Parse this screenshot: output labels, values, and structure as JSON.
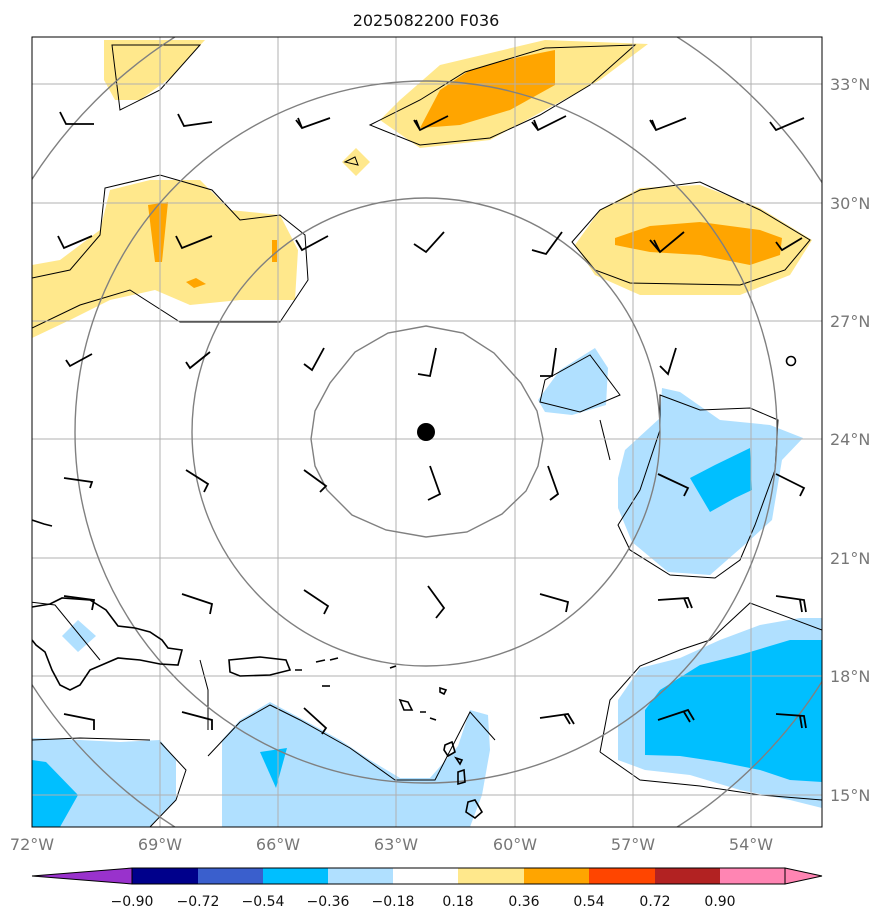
{
  "title": "2025082200 F036",
  "map": {
    "lon_range": [
      -72.3,
      -52.2
    ],
    "lat_range": [
      14.2,
      34.2
    ],
    "lon_ticks": [
      {
        "value": -72,
        "label": "72°W"
      },
      {
        "value": -69,
        "label": "69°W"
      },
      {
        "value": -66,
        "label": "66°W"
      },
      {
        "value": -63,
        "label": "63°W"
      },
      {
        "value": -60,
        "label": "60°W"
      },
      {
        "value": -57,
        "label": "57°W"
      },
      {
        "value": -54,
        "label": "54°W"
      }
    ],
    "lat_ticks": [
      {
        "value": 33,
        "label": "33°N"
      },
      {
        "value": 30,
        "label": "30°N"
      },
      {
        "value": 27,
        "label": "27°N"
      },
      {
        "value": 24,
        "label": "24°N"
      },
      {
        "value": 21,
        "label": "21°N"
      },
      {
        "value": 18,
        "label": "18°N"
      },
      {
        "value": 15,
        "label": "15°N"
      }
    ],
    "storm_center": {
      "lon": -62.2,
      "lat": 24.2
    },
    "range_rings_deg": [
      3,
      6,
      9
    ]
  },
  "colorbar": {
    "ticks": [
      "−0.90",
      "−0.72",
      "−0.54",
      "−0.36",
      "−0.18",
      "0.18",
      "0.36",
      "0.54",
      "0.72",
      "0.90"
    ],
    "colors": [
      "#9932cc",
      "#00008b",
      "#3a5fcd",
      "#00bfff",
      "#b0e0ff",
      "#ffffff",
      "#ffe88c",
      "#ffa500",
      "#ff4500",
      "#b22222",
      "#ff85b3"
    ]
  },
  "field_colors": {
    "pos_low": "#ffe88c",
    "pos_mid": "#ffa500",
    "neg_low": "#b0e0ff",
    "neg_mid": "#00bfff",
    "land": "#000000",
    "rings": "#808080",
    "grid": "#b0b0b0"
  }
}
